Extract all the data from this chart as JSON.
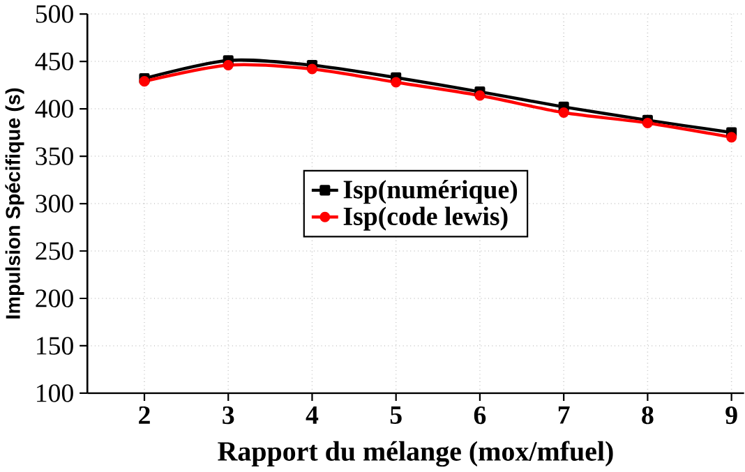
{
  "chart_data": {
    "type": "line",
    "xlabel": "Rapport du mélange (mox/mfuel)",
    "ylabel": "Impulsion Spécifique (s)",
    "x": [
      2,
      3,
      4,
      5,
      6,
      7,
      8,
      9
    ],
    "series": [
      {
        "name": "Isp(numérique)",
        "color": "#000000",
        "marker": "square",
        "values": [
          432,
          451,
          446,
          433,
          418,
          402,
          388,
          375
        ]
      },
      {
        "name": "Isp(code lewis)",
        "color": "#ff0000",
        "marker": "circle",
        "values": [
          429,
          446,
          442,
          428,
          414,
          396,
          385,
          370
        ]
      }
    ],
    "xlim": [
      1.32,
      9.15
    ],
    "ylim": [
      100,
      500
    ],
    "xticks": [
      2,
      3,
      4,
      5,
      6,
      7,
      8,
      9
    ],
    "yticks": [
      100,
      150,
      200,
      250,
      300,
      350,
      400,
      450,
      500
    ],
    "grid": true,
    "legend": "center",
    "line_style": "solid"
  }
}
